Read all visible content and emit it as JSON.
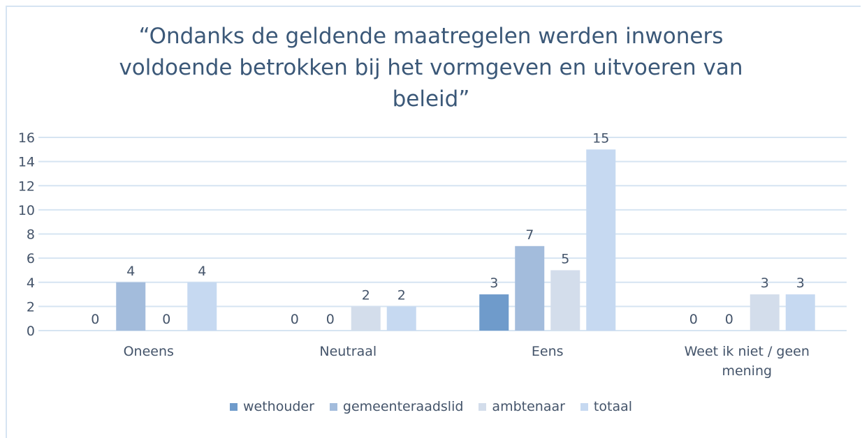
{
  "chart_data": {
    "type": "bar",
    "title": "“Ondanks de geldende maatregelen werden inwoners voldoende betrokken bij het vormgeven en uitvoeren van beleid”",
    "categories": [
      "Oneens",
      "Neutraal",
      "Eens",
      "Weet ik niet / geen mening"
    ],
    "series": [
      {
        "name": "wethouder",
        "color": "#6f9bcb",
        "values": [
          0,
          0,
          3,
          0
        ]
      },
      {
        "name": "gemeenteraadslid",
        "color": "#a3bcdc",
        "values": [
          4,
          0,
          7,
          0
        ]
      },
      {
        "name": "ambtenaar",
        "color": "#d3ddeb",
        "values": [
          0,
          2,
          5,
          3
        ]
      },
      {
        "name": "totaal",
        "color": "#c6d9f1",
        "values": [
          4,
          2,
          15,
          3
        ]
      }
    ],
    "ylim": [
      0,
      16
    ],
    "yticks": [
      0,
      2,
      4,
      6,
      8,
      10,
      12,
      14,
      16
    ],
    "grid": true,
    "legend": "bottom"
  }
}
